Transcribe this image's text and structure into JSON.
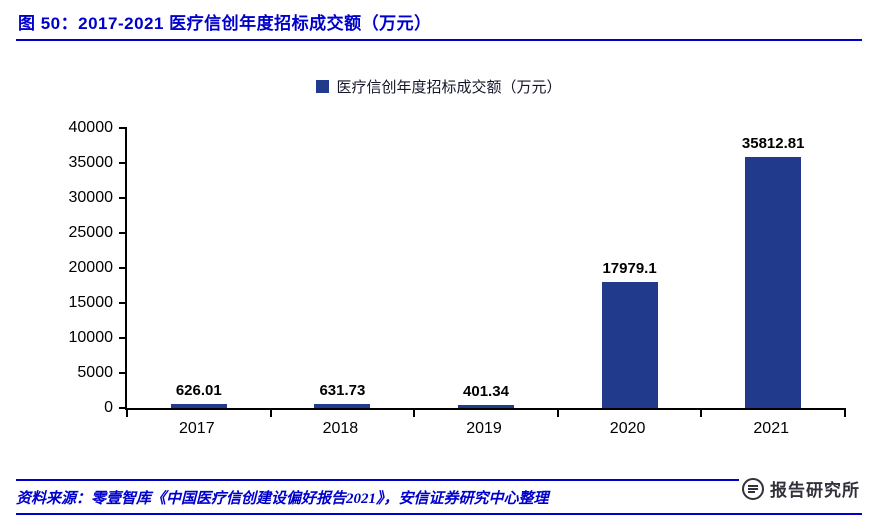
{
  "header": {
    "title": "图 50：2017-2021 医疗信创年度招标成交额（万元）"
  },
  "chart_data": {
    "type": "bar",
    "title": "医疗信创年度招标成交额（万元）",
    "legend": [
      "医疗信创年度招标成交额（万元）"
    ],
    "legend_position": "top-center",
    "categories": [
      "2017",
      "2018",
      "2019",
      "2020",
      "2021"
    ],
    "values": [
      626.01,
      631.73,
      401.34,
      17979.1,
      35812.81
    ],
    "data_labels": [
      "626.01",
      "631.73",
      "401.34",
      "17979.1",
      "35812.81"
    ],
    "xlabel": "",
    "ylabel": "",
    "ylim": [
      0,
      40000
    ],
    "yticks": [
      0,
      5000,
      10000,
      15000,
      20000,
      25000,
      30000,
      35000,
      40000
    ],
    "grid": false,
    "bar_color": "#213a8c"
  },
  "footer": {
    "source": "资料来源：零壹智库《中国医疗信创建设偏好报告2021》，安信证券研究中心整理",
    "watermark": "报告研究所"
  },
  "colors": {
    "accent_blue": "#0000CC",
    "bar_blue": "#213a8c",
    "axis_black": "#000000"
  }
}
